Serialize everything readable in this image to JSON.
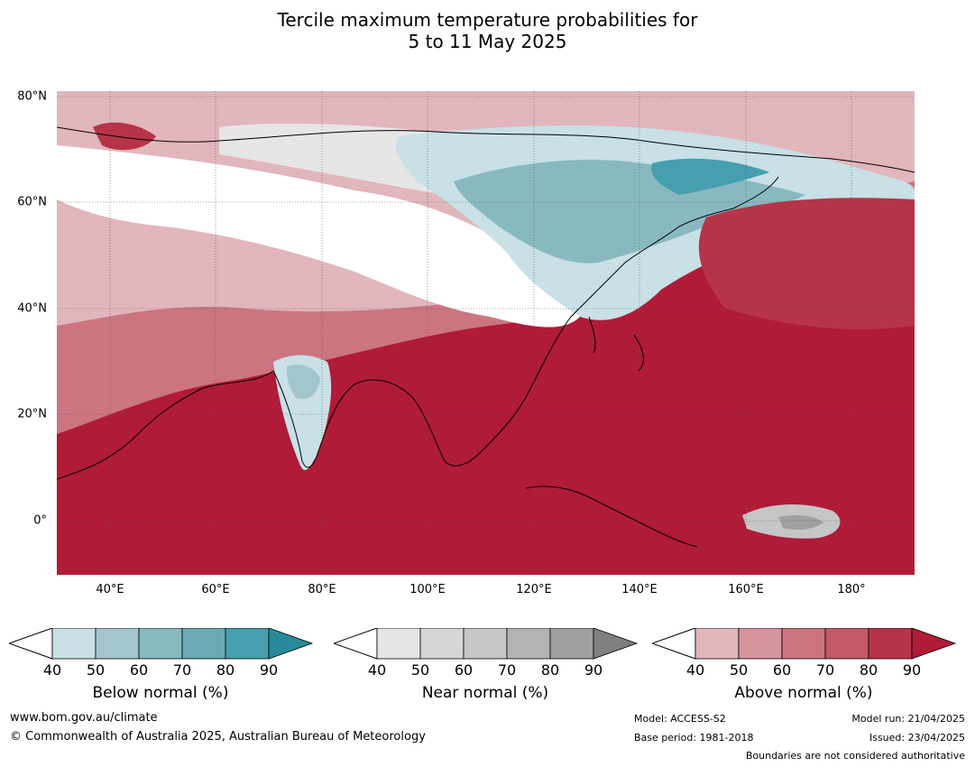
{
  "title_line1": "Tercile maximum temperature probabilities for",
  "title_line2": "5 to 11 May 2025",
  "latitude_labels": [
    "80°N",
    "60°N",
    "40°N",
    "20°N",
    "0°"
  ],
  "longitude_labels": [
    "40°E",
    "60°E",
    "80°E",
    "100°E",
    "120°E",
    "140°E",
    "160°E",
    "180°"
  ],
  "legends": [
    {
      "title": "Below normal (%)",
      "ticks": [
        "40",
        "50",
        "60",
        "70",
        "80",
        "90"
      ],
      "colors": [
        "#c8e0e6",
        "#a3c6cc",
        "#88b9c1",
        "#6aaab5",
        "#459fae",
        "#2a8a9c"
      ]
    },
    {
      "title": "Near normal (%)",
      "ticks": [
        "40",
        "50",
        "60",
        "70",
        "80",
        "90"
      ],
      "colors": [
        "#e6e6e6",
        "#d6d6d6",
        "#c6c6c6",
        "#b3b3b3",
        "#a0a0a0",
        "#7f7f7f"
      ]
    },
    {
      "title": "Above normal (%)",
      "ticks": [
        "40",
        "50",
        "60",
        "70",
        "80",
        "90"
      ],
      "colors": [
        "#e1b6bc",
        "#d6959d",
        "#cc7580",
        "#c25a67",
        "#b73448",
        "#b01b38"
      ]
    }
  ],
  "footer": {
    "website": "www.bom.gov.au/climate",
    "copyright": "© Commonwealth of Australia 2025, Australian Bureau of Meteorology",
    "model": "Model: ACCESS-S2",
    "base_period": "Base period: 1981-2018",
    "model_run": "Model run: 21/04/2025",
    "issued": "Issued: 23/04/2025",
    "boundaries": "Boundaries are not considered authoritative"
  }
}
